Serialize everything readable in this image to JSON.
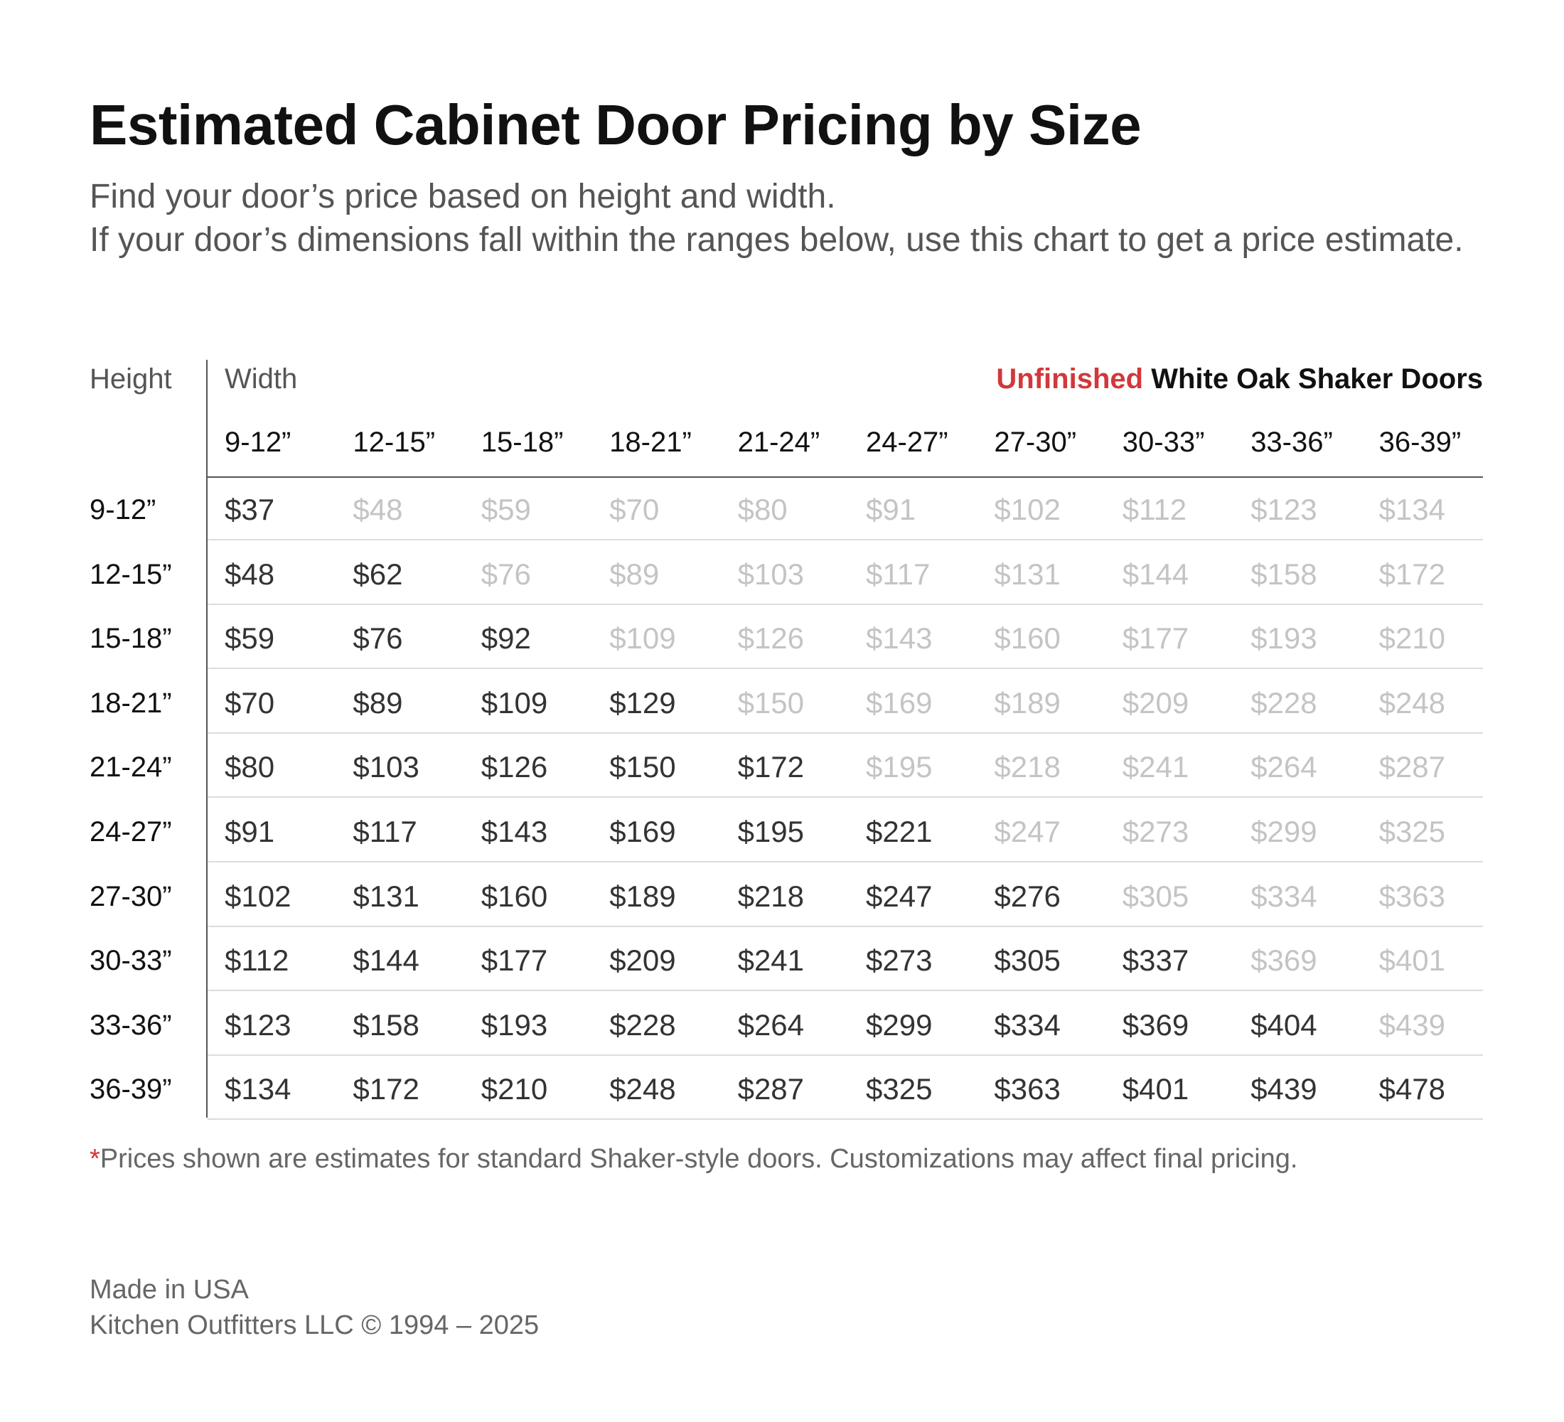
{
  "header": {
    "title": "Estimated Cabinet Door Pricing by Size",
    "subtitle_line1": "Find your door’s price based on height and width.",
    "subtitle_line2": "If your door’s dimensions fall within the ranges below, use this chart to get a price estimate."
  },
  "table": {
    "height_label": "Height",
    "width_label": "Width",
    "product_accent": "Unfinished",
    "product_name": "White Oak Shaker Doors",
    "accent_color": "#d2383a",
    "width_ranges": [
      "9-12”",
      "12-15”",
      "15-18”",
      "18-21”",
      "21-24”",
      "24-27”",
      "27-30”",
      "30-33”",
      "33-36”",
      "36-39”"
    ],
    "rows": [
      {
        "height": "9-12”",
        "prices": [
          "$37",
          "$48",
          "$59",
          "$70",
          "$80",
          "$91",
          "$102",
          "$112",
          "$123",
          "$134"
        ]
      },
      {
        "height": "12-15”",
        "prices": [
          "$48",
          "$62",
          "$76",
          "$89",
          "$103",
          "$117",
          "$131",
          "$144",
          "$158",
          "$172"
        ]
      },
      {
        "height": "15-18”",
        "prices": [
          "$59",
          "$76",
          "$92",
          "$109",
          "$126",
          "$143",
          "$160",
          "$177",
          "$193",
          "$210"
        ]
      },
      {
        "height": "18-21”",
        "prices": [
          "$70",
          "$89",
          "$109",
          "$129",
          "$150",
          "$169",
          "$189",
          "$209",
          "$228",
          "$248"
        ]
      },
      {
        "height": "21-24”",
        "prices": [
          "$80",
          "$103",
          "$126",
          "$150",
          "$172",
          "$195",
          "$218",
          "$241",
          "$264",
          "$287"
        ]
      },
      {
        "height": "24-27”",
        "prices": [
          "$91",
          "$117",
          "$143",
          "$169",
          "$195",
          "$221",
          "$247",
          "$273",
          "$299",
          "$325"
        ]
      },
      {
        "height": "27-30”",
        "prices": [
          "$102",
          "$131",
          "$160",
          "$189",
          "$218",
          "$247",
          "$276",
          "$305",
          "$334",
          "$363"
        ]
      },
      {
        "height": "30-33”",
        "prices": [
          "$112",
          "$144",
          "$177",
          "$209",
          "$241",
          "$273",
          "$305",
          "$337",
          "$369",
          "$401"
        ]
      },
      {
        "height": "33-36”",
        "prices": [
          "$123",
          "$158",
          "$193",
          "$228",
          "$264",
          "$299",
          "$334",
          "$369",
          "$404",
          "$439"
        ]
      },
      {
        "height": "36-39”",
        "prices": [
          "$134",
          "$172",
          "$210",
          "$248",
          "$287",
          "$325",
          "$363",
          "$401",
          "$439",
          "$478"
        ]
      }
    ]
  },
  "footnote": {
    "marker": "*",
    "text": "Prices shown are estimates for standard Shaker-style doors. Customizations may affect final pricing."
  },
  "footer": {
    "made_in": "Made in USA",
    "copyright": "Kitchen Outfitters LLC © 1994 – 2025"
  }
}
